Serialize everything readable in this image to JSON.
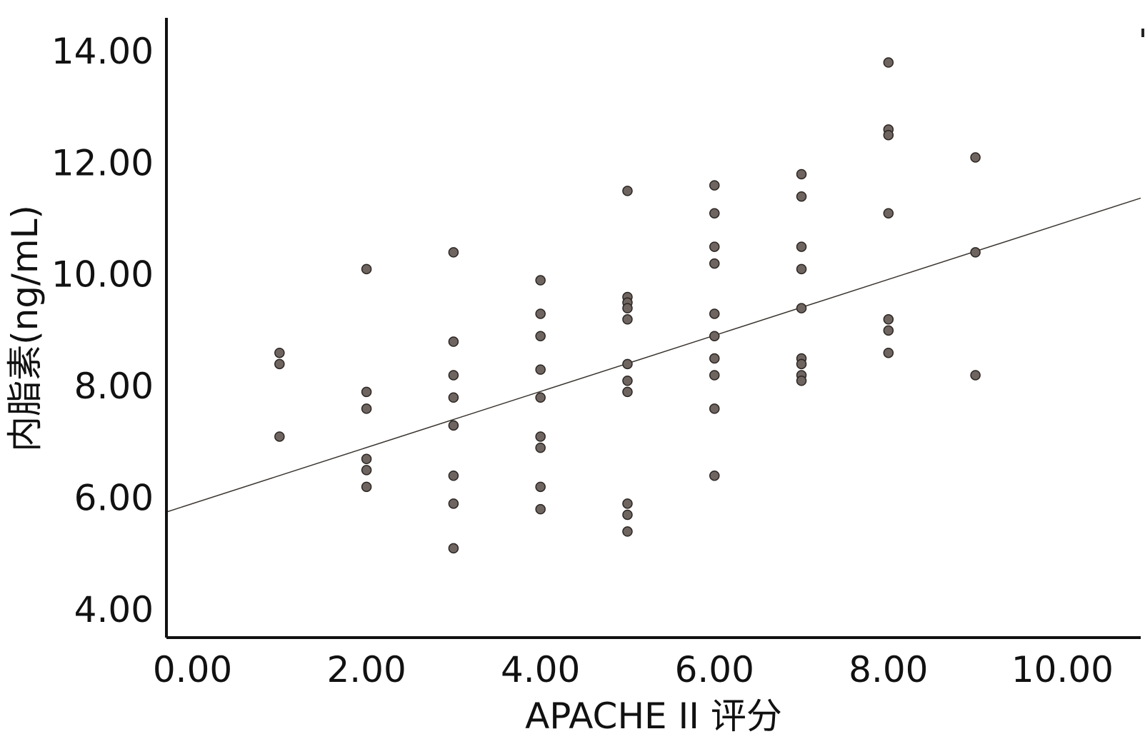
{
  "chart_data": {
    "type": "scatter",
    "title": "",
    "xlabel": "APACHE II 评分",
    "ylabel": "内脂素(ng/mL)",
    "xlim": [
      -0.3,
      10.9
    ],
    "ylim": [
      3.5,
      14.6
    ],
    "x_ticks": [
      0,
      2,
      4,
      6,
      8,
      10
    ],
    "y_ticks": [
      4,
      6,
      8,
      10,
      12,
      14
    ],
    "x_tick_labels": [
      "0.00",
      "2.00",
      "4.00",
      "6.00",
      "8.00",
      "10.00"
    ],
    "y_tick_labels": [
      "4.00",
      "6.00",
      "8.00",
      "10.00",
      "12.00",
      "14.00"
    ],
    "grid": false,
    "marker_color": "#6f6560",
    "marker_edge": "#2b2522",
    "fit_line": {
      "intercept": 5.9,
      "slope": 0.502,
      "color": "#3a3530"
    },
    "points": [
      [
        1,
        8.6
      ],
      [
        1,
        8.4
      ],
      [
        1,
        7.1
      ],
      [
        2,
        10.1
      ],
      [
        2,
        7.9
      ],
      [
        2,
        7.6
      ],
      [
        2,
        6.7
      ],
      [
        2,
        6.5
      ],
      [
        2,
        6.2
      ],
      [
        3,
        10.4
      ],
      [
        3,
        8.8
      ],
      [
        3,
        8.2
      ],
      [
        3,
        7.8
      ],
      [
        3,
        7.3
      ],
      [
        3,
        6.4
      ],
      [
        3,
        5.9
      ],
      [
        3,
        5.1
      ],
      [
        4,
        9.9
      ],
      [
        4,
        9.3
      ],
      [
        4,
        8.9
      ],
      [
        4,
        8.3
      ],
      [
        4,
        7.8
      ],
      [
        4,
        7.1
      ],
      [
        4,
        6.9
      ],
      [
        4,
        6.2
      ],
      [
        4,
        5.8
      ],
      [
        5,
        11.5
      ],
      [
        5,
        9.6
      ],
      [
        5,
        9.5
      ],
      [
        5,
        9.4
      ],
      [
        5,
        9.2
      ],
      [
        5,
        8.4
      ],
      [
        5,
        8.1
      ],
      [
        5,
        7.9
      ],
      [
        5,
        5.9
      ],
      [
        5,
        5.7
      ],
      [
        5,
        5.4
      ],
      [
        6,
        11.6
      ],
      [
        6,
        11.1
      ],
      [
        6,
        10.5
      ],
      [
        6,
        10.2
      ],
      [
        6,
        9.3
      ],
      [
        6,
        8.9
      ],
      [
        6,
        8.5
      ],
      [
        6,
        8.2
      ],
      [
        6,
        7.6
      ],
      [
        6,
        6.4
      ],
      [
        7,
        11.8
      ],
      [
        7,
        11.4
      ],
      [
        7,
        10.5
      ],
      [
        7,
        10.1
      ],
      [
        7,
        9.4
      ],
      [
        7,
        8.5
      ],
      [
        7,
        8.4
      ],
      [
        7,
        8.2
      ],
      [
        7,
        8.1
      ],
      [
        8,
        13.8
      ],
      [
        8,
        12.6
      ],
      [
        8,
        12.5
      ],
      [
        8,
        11.1
      ],
      [
        8,
        9.2
      ],
      [
        8,
        9.0
      ],
      [
        8,
        8.6
      ],
      [
        9,
        12.1
      ],
      [
        9,
        10.4
      ],
      [
        9,
        8.2
      ]
    ]
  }
}
